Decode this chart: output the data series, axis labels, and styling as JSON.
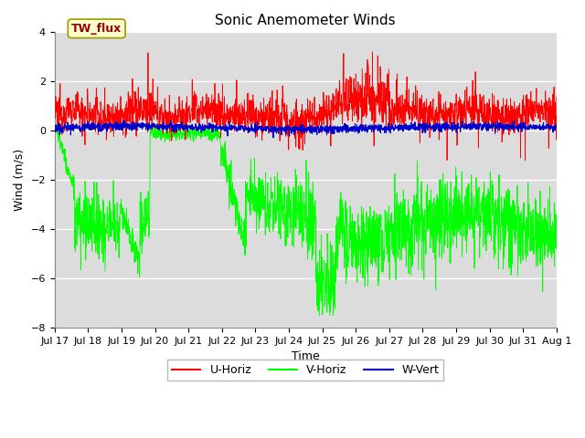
{
  "title": "Sonic Anemometer Winds",
  "xlabel": "Time",
  "ylabel": "Wind (m/s)",
  "ylim": [
    -8,
    4
  ],
  "yticks": [
    -8,
    -6,
    -4,
    -2,
    0,
    2,
    4
  ],
  "x_tick_labels": [
    "Jul 17",
    "Jul 18",
    "Jul 19",
    "Jul 20",
    "Jul 21",
    "Jul 22",
    "Jul 23",
    "Jul 24",
    "Jul 25",
    "Jul 26",
    "Jul 27",
    "Jul 28",
    "Jul 29",
    "Jul 30",
    "Jul 31",
    "Aug 1"
  ],
  "legend_labels": [
    "U-Horiz",
    "V-Horiz",
    "W-Vert"
  ],
  "legend_colors": [
    "#ff0000",
    "#00ff00",
    "#0000cc"
  ],
  "line_colors": {
    "U": "#ff0000",
    "V": "#00ff00",
    "W": "#0000cc"
  },
  "annotation_text": "TW_flux",
  "annotation_bg": "#ffffcc",
  "annotation_border": "#999900",
  "plot_bg": "#dcdcdc",
  "n_points": 2000,
  "seed": 12345
}
